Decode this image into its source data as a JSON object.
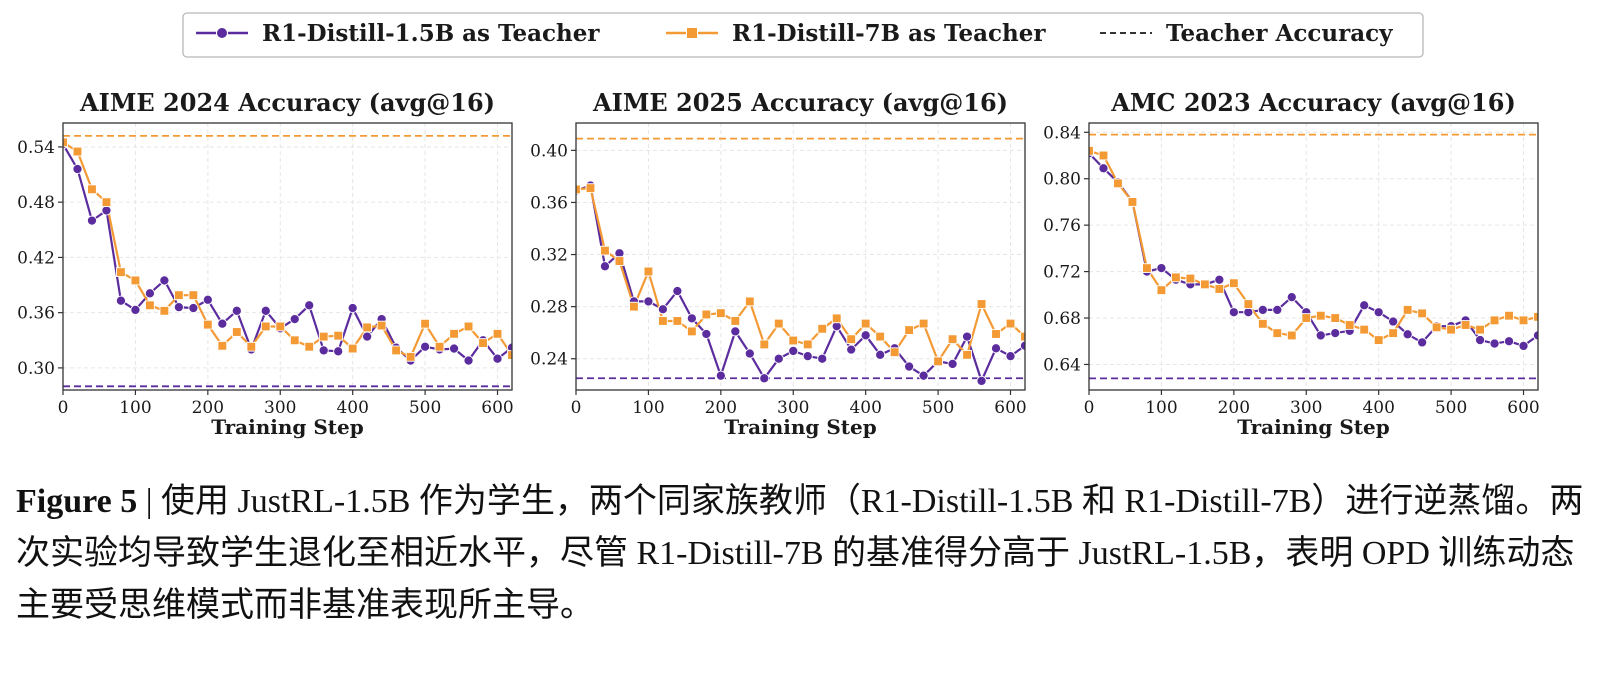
{
  "colors": {
    "teacher_1_5b": "#5b2c9e",
    "teacher_7b": "#f39a35",
    "legend_dashed": "#333333",
    "grid": "#e6e6e6"
  },
  "legend": {
    "items": [
      {
        "label": "R1-Distill-1.5B as Teacher",
        "marker": "circle",
        "color": "#5b2c9e"
      },
      {
        "label": "R1-Distill-7B as Teacher",
        "marker": "square",
        "color": "#f39a35"
      },
      {
        "label": "Teacher Accuracy",
        "marker": "dashed",
        "color": "#333333"
      }
    ]
  },
  "chart_data": [
    {
      "type": "line",
      "title": "AIME 2024 Accuracy (avg@16)",
      "xlabel": "Training Step",
      "ylabel": "",
      "xlim": [
        0,
        620
      ],
      "ylim": [
        0.276,
        0.566
      ],
      "xticks": [
        0,
        100,
        200,
        300,
        400,
        500,
        600
      ],
      "yticks": [
        0.3,
        0.36,
        0.42,
        0.48,
        0.54
      ],
      "grid": true,
      "series": [
        {
          "name": "R1-Distill-1.5B as Teacher",
          "color": "#5b2c9e",
          "marker": "circle",
          "x": [
            0,
            20,
            40,
            60,
            80,
            100,
            120,
            140,
            160,
            180,
            200,
            220,
            240,
            260,
            280,
            300,
            320,
            340,
            360,
            380,
            400,
            420,
            440,
            460,
            480,
            500,
            520,
            540,
            560,
            580,
            600,
            620
          ],
          "y": [
            0.543,
            0.516,
            0.46,
            0.471,
            0.373,
            0.363,
            0.381,
            0.395,
            0.366,
            0.365,
            0.374,
            0.348,
            0.362,
            0.32,
            0.362,
            0.343,
            0.353,
            0.368,
            0.319,
            0.318,
            0.365,
            0.334,
            0.353,
            0.322,
            0.308,
            0.323,
            0.32,
            0.321,
            0.308,
            0.33,
            0.31,
            0.322
          ]
        },
        {
          "name": "R1-Distill-7B as Teacher",
          "color": "#f39a35",
          "marker": "square",
          "x": [
            0,
            20,
            40,
            60,
            80,
            100,
            120,
            140,
            160,
            180,
            200,
            220,
            240,
            260,
            280,
            300,
            320,
            340,
            360,
            380,
            400,
            420,
            440,
            460,
            480,
            500,
            520,
            540,
            560,
            580,
            600,
            620
          ],
          "y": [
            0.545,
            0.535,
            0.494,
            0.48,
            0.404,
            0.395,
            0.368,
            0.362,
            0.379,
            0.379,
            0.347,
            0.324,
            0.339,
            0.323,
            0.345,
            0.345,
            0.33,
            0.323,
            0.334,
            0.335,
            0.321,
            0.344,
            0.346,
            0.319,
            0.312,
            0.348,
            0.323,
            0.337,
            0.345,
            0.327,
            0.337,
            0.314
          ]
        }
      ],
      "teacher_lines": [
        {
          "series": "R1-Distill-1.5B as Teacher",
          "color": "#5b2c9e",
          "value": 0.28
        },
        {
          "series": "R1-Distill-7B as Teacher",
          "color": "#f39a35",
          "value": 0.552
        }
      ]
    },
    {
      "type": "line",
      "title": "AIME 2025 Accuracy (avg@16)",
      "xlabel": "Training Step",
      "ylabel": "",
      "xlim": [
        0,
        620
      ],
      "ylim": [
        0.216,
        0.421
      ],
      "xticks": [
        0,
        100,
        200,
        300,
        400,
        500,
        600
      ],
      "yticks": [
        0.24,
        0.28,
        0.32,
        0.36,
        0.4
      ],
      "grid": true,
      "series": [
        {
          "name": "R1-Distill-1.5B as Teacher",
          "color": "#5b2c9e",
          "marker": "circle",
          "x": [
            0,
            20,
            40,
            60,
            80,
            100,
            120,
            140,
            160,
            180,
            200,
            220,
            240,
            260,
            280,
            300,
            320,
            340,
            360,
            380,
            400,
            420,
            440,
            460,
            480,
            500,
            520,
            540,
            560,
            580,
            600,
            620
          ],
          "y": [
            0.369,
            0.373,
            0.311,
            0.321,
            0.284,
            0.284,
            0.278,
            0.292,
            0.271,
            0.259,
            0.227,
            0.261,
            0.244,
            0.225,
            0.24,
            0.246,
            0.242,
            0.24,
            0.265,
            0.247,
            0.258,
            0.243,
            0.248,
            0.234,
            0.227,
            0.238,
            0.236,
            0.257,
            0.223,
            0.248,
            0.242,
            0.25
          ]
        },
        {
          "name": "R1-Distill-7B as Teacher",
          "color": "#f39a35",
          "marker": "square",
          "x": [
            0,
            20,
            40,
            60,
            80,
            100,
            120,
            140,
            160,
            180,
            200,
            220,
            240,
            260,
            280,
            300,
            320,
            340,
            360,
            380,
            400,
            420,
            440,
            460,
            480,
            500,
            520,
            540,
            560,
            580,
            600,
            620
          ],
          "y": [
            0.37,
            0.371,
            0.323,
            0.315,
            0.28,
            0.307,
            0.269,
            0.269,
            0.261,
            0.274,
            0.275,
            0.269,
            0.284,
            0.251,
            0.267,
            0.254,
            0.251,
            0.263,
            0.271,
            0.255,
            0.267,
            0.257,
            0.245,
            0.262,
            0.267,
            0.238,
            0.255,
            0.243,
            0.282,
            0.259,
            0.267,
            0.257
          ]
        }
      ],
      "teacher_lines": [
        {
          "series": "R1-Distill-1.5B as Teacher",
          "color": "#5b2c9e",
          "value": 0.225
        },
        {
          "series": "R1-Distill-7B as Teacher",
          "color": "#f39a35",
          "value": 0.409
        }
      ]
    },
    {
      "type": "line",
      "title": "AMC 2023 Accuracy (avg@16)",
      "xlabel": "Training Step",
      "ylabel": "",
      "xlim": [
        0,
        620
      ],
      "ylim": [
        0.618,
        0.848
      ],
      "xticks": [
        0,
        100,
        200,
        300,
        400,
        500,
        600
      ],
      "yticks": [
        0.64,
        0.68,
        0.72,
        0.76,
        0.8,
        0.84
      ],
      "grid": true,
      "series": [
        {
          "name": "R1-Distill-1.5B as Teacher",
          "color": "#5b2c9e",
          "marker": "circle",
          "x": [
            0,
            20,
            40,
            60,
            80,
            100,
            120,
            140,
            160,
            180,
            200,
            220,
            240,
            260,
            280,
            300,
            320,
            340,
            360,
            380,
            400,
            420,
            440,
            460,
            480,
            500,
            520,
            540,
            560,
            580,
            600,
            620
          ],
          "y": [
            0.822,
            0.809,
            0.797,
            0.78,
            0.72,
            0.723,
            0.713,
            0.709,
            0.709,
            0.713,
            0.685,
            0.685,
            0.687,
            0.687,
            0.698,
            0.685,
            0.665,
            0.667,
            0.669,
            0.691,
            0.685,
            0.677,
            0.666,
            0.659,
            0.673,
            0.673,
            0.678,
            0.661,
            0.658,
            0.66,
            0.656,
            0.665
          ]
        },
        {
          "name": "R1-Distill-7B as Teacher",
          "color": "#f39a35",
          "marker": "square",
          "x": [
            0,
            20,
            40,
            60,
            80,
            100,
            120,
            140,
            160,
            180,
            200,
            220,
            240,
            260,
            280,
            300,
            320,
            340,
            360,
            380,
            400,
            420,
            440,
            460,
            480,
            500,
            520,
            540,
            560,
            580,
            600,
            620
          ],
          "y": [
            0.824,
            0.82,
            0.796,
            0.78,
            0.723,
            0.704,
            0.715,
            0.714,
            0.709,
            0.705,
            0.71,
            0.692,
            0.675,
            0.667,
            0.665,
            0.68,
            0.682,
            0.68,
            0.674,
            0.67,
            0.661,
            0.667,
            0.687,
            0.684,
            0.672,
            0.67,
            0.674,
            0.67,
            0.678,
            0.682,
            0.678,
            0.681
          ]
        }
      ],
      "teacher_lines": [
        {
          "series": "R1-Distill-1.5B as Teacher",
          "color": "#5b2c9e",
          "value": 0.628
        },
        {
          "series": "R1-Distill-7B as Teacher",
          "color": "#f39a35",
          "value": 0.838
        }
      ]
    }
  ],
  "caption": {
    "label": "Figure 5",
    "separator": "|",
    "text": "使用 JustRL-1.5B 作为学生，两个同家族教师（R1-Distill-1.5B 和 R1-Distill-7B）进行逆蒸馏。两次实验均导致学生退化至相近水平，尽管 R1-Distill-7B 的基准得分高于 JustRL-1.5B，表明 OPD 训练动态主要受思维模式而非基准表现所主导。"
  }
}
